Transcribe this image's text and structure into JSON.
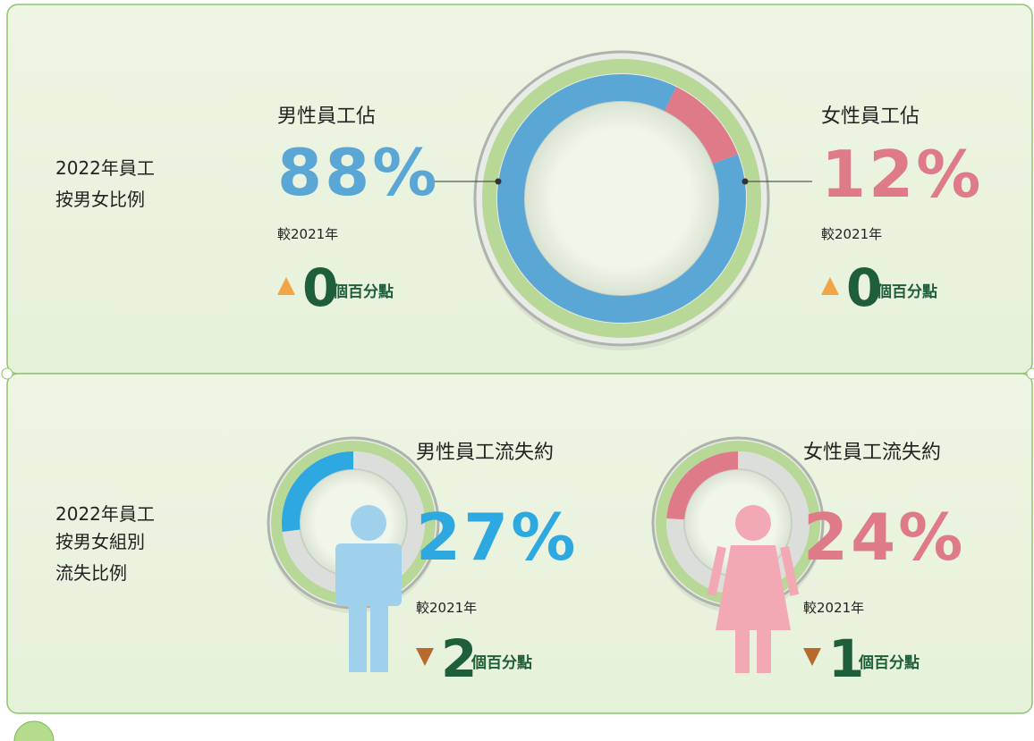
{
  "sections": [
    {
      "label_lines": [
        "2022年員工",
        "按男女比例"
      ],
      "items": [
        {
          "title": "男性員工佔",
          "value": 88,
          "value_label": "88%",
          "compare": "較2021年",
          "direction": "up",
          "change": 0,
          "unit": "個百分點",
          "color": "#5aa7d6"
        },
        {
          "title": "女性員工佔",
          "value": 12,
          "value_label": "12%",
          "compare": "較2021年",
          "direction": "up",
          "change": 0,
          "unit": "個百分點",
          "color": "#df7b88"
        }
      ]
    },
    {
      "label_lines": [
        "2022年員工",
        "按男女組別",
        "流失比例"
      ],
      "items": [
        {
          "title": "男性員工流失約",
          "value": 27,
          "value_label": "27%",
          "compare": "較2021年",
          "direction": "down",
          "change": 2,
          "unit": "個百分點",
          "color": "#2ea8e0"
        },
        {
          "title": "女性員工流失約",
          "value": 24,
          "value_label": "24%",
          "compare": "較2021年",
          "direction": "down",
          "change": 1,
          "unit": "個百分點",
          "color": "#df7b88"
        }
      ]
    }
  ]
}
